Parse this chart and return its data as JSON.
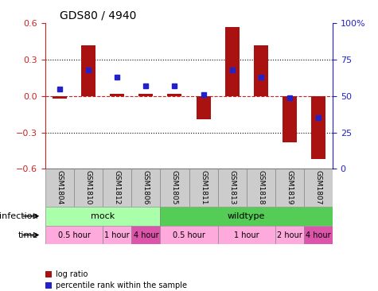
{
  "title": "GDS80 / 4940",
  "samples": [
    "GSM1804",
    "GSM1810",
    "GSM1812",
    "GSM1806",
    "GSM1805",
    "GSM1811",
    "GSM1813",
    "GSM1818",
    "GSM1819",
    "GSM1807"
  ],
  "log_ratio": [
    -0.02,
    0.42,
    0.02,
    0.02,
    0.02,
    -0.19,
    0.57,
    0.42,
    -0.38,
    -0.52
  ],
  "percentile": [
    55,
    68,
    63,
    57,
    57,
    51,
    68,
    63,
    49,
    35
  ],
  "bar_color": "#aa1111",
  "dot_color": "#2222cc",
  "ylim_left": [
    -0.6,
    0.6
  ],
  "ylim_right": [
    0,
    100
  ],
  "yticks_left": [
    -0.6,
    -0.3,
    0.0,
    0.3,
    0.6
  ],
  "yticks_right": [
    0,
    25,
    50,
    75,
    100
  ],
  "hline_color": "#cc2222",
  "grid_yticks": [
    0.3,
    -0.3
  ],
  "infection_groups": [
    {
      "label": "mock",
      "start": 0,
      "end": 4,
      "color": "#aaffaa"
    },
    {
      "label": "wildtype",
      "start": 4,
      "end": 10,
      "color": "#55cc55"
    }
  ],
  "time_groups": [
    {
      "label": "0.5 hour",
      "start": 0,
      "end": 2,
      "color": "#ffaadd"
    },
    {
      "label": "1 hour",
      "start": 2,
      "end": 3,
      "color": "#ffaadd"
    },
    {
      "label": "4 hour",
      "start": 3,
      "end": 4,
      "color": "#dd55aa"
    },
    {
      "label": "0.5 hour",
      "start": 4,
      "end": 6,
      "color": "#ffaadd"
    },
    {
      "label": "1 hour",
      "start": 6,
      "end": 8,
      "color": "#ffaadd"
    },
    {
      "label": "2 hour",
      "start": 8,
      "end": 9,
      "color": "#ffaadd"
    },
    {
      "label": "4 hour",
      "start": 9,
      "end": 10,
      "color": "#dd55aa"
    }
  ],
  "legend_items": [
    {
      "label": "log ratio",
      "color": "#aa1111"
    },
    {
      "label": "percentile rank within the sample",
      "color": "#2222cc"
    }
  ],
  "background_color": "#ffffff",
  "plot_bg_color": "#ffffff",
  "infection_label": "infection",
  "time_label": "time"
}
